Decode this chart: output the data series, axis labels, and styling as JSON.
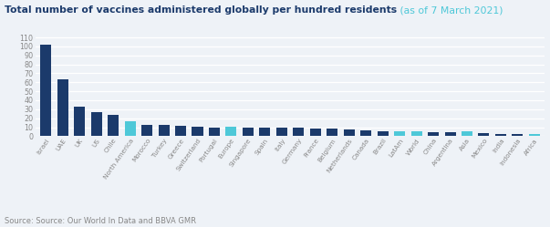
{
  "title_bold": "Total number of vaccines administered globally per hundred residents",
  "title_light": " (as of 7 March 2021)",
  "source": "Source: Source: Our World In Data and BBVA GMR",
  "categories": [
    "Israel",
    "UAE",
    "UK",
    "US",
    "Chile",
    "North America",
    "Morocco",
    "Turkey",
    "Greece",
    "Switzerland",
    "Portugal",
    "Europe",
    "Singapore",
    "Spain",
    "Italy",
    "Germany",
    "France",
    "Belgium",
    "Netherlands",
    "Canada",
    "Brazil",
    "LatAm",
    "World",
    "China",
    "Argentina",
    "Asia",
    "Mexico",
    "India",
    "Indonesia",
    "Africa"
  ],
  "values": [
    102,
    63,
    33,
    27,
    24,
    17,
    13,
    13,
    12,
    11,
    10,
    11,
    10,
    10,
    10,
    10,
    9,
    9,
    8,
    6,
    5,
    5,
    5,
    4,
    4,
    5,
    3,
    2,
    2,
    2
  ],
  "colors": [
    "#1b3a6b",
    "#1b3a6b",
    "#1b3a6b",
    "#1b3a6b",
    "#1b3a6b",
    "#4ec8d8",
    "#1b3a6b",
    "#1b3a6b",
    "#1b3a6b",
    "#1b3a6b",
    "#1b3a6b",
    "#4ec8d8",
    "#1b3a6b",
    "#1b3a6b",
    "#1b3a6b",
    "#1b3a6b",
    "#1b3a6b",
    "#1b3a6b",
    "#1b3a6b",
    "#1b3a6b",
    "#1b3a6b",
    "#4ec8d8",
    "#4ec8d8",
    "#1b3a6b",
    "#1b3a6b",
    "#4ec8d8",
    "#1b3a6b",
    "#1b3a6b",
    "#1b3a6b",
    "#4ec8d8"
  ],
  "ylim": [
    0,
    115
  ],
  "yticks": [
    0,
    10,
    20,
    30,
    40,
    50,
    60,
    70,
    80,
    90,
    100,
    110
  ],
  "bg_color": "#eef2f7",
  "title_color_bold": "#1b3a6b",
  "title_color_light": "#4ec8d8",
  "grid_color": "#ffffff",
  "tick_color": "#888888",
  "source_fontsize": 6,
  "title_fontsize": 7.8
}
